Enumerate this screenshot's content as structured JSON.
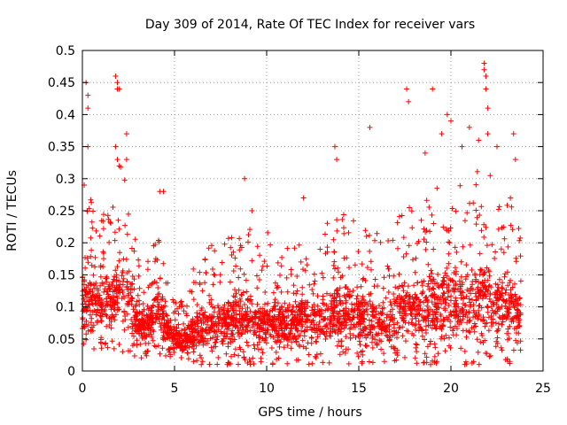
{
  "chart_data": {
    "type": "scatter",
    "title": "Day 309 of 2014, Rate Of TEC Index for receiver vars",
    "xlabel": "GPS time / hours",
    "ylabel": "ROTI / TECUs",
    "xlim": [
      0,
      25
    ],
    "ylim": [
      0,
      0.5
    ],
    "x_ticks": [
      0,
      5,
      10,
      15,
      20,
      25
    ],
    "y_ticks": [
      0,
      0.05,
      0.1,
      0.15,
      0.2,
      0.25,
      0.3,
      0.35,
      0.4,
      0.45,
      0.5
    ],
    "x_tick_labels": [
      "0",
      "5",
      "10",
      "15",
      "20",
      "25"
    ],
    "y_tick_labels": [
      "0",
      "0.05",
      "0.1",
      "0.15",
      "0.2",
      "0.25",
      "0.3",
      "0.35",
      "0.4",
      "0.45",
      "0.5"
    ],
    "grid": true,
    "marker": "+",
    "series_color": "#ff0000",
    "data_x_range": [
      0,
      23.8
    ],
    "envelope": {
      "x": [
        0,
        0.5,
        1.0,
        1.5,
        2.0,
        2.5,
        3.0,
        3.5,
        4.0,
        4.5,
        5.0,
        5.5,
        6.0,
        6.5,
        7.0,
        7.5,
        8.0,
        8.5,
        9.0,
        9.5,
        10.0,
        10.5,
        11.0,
        11.5,
        12.0,
        12.5,
        13.0,
        13.5,
        14.0,
        14.5,
        15.0,
        15.5,
        16.0,
        16.5,
        17.0,
        17.5,
        18.0,
        18.5,
        19.0,
        19.5,
        20.0,
        20.5,
        21.0,
        21.5,
        22.0,
        22.5,
        23.0,
        23.5,
        23.8
      ],
      "low": [
        0.03,
        0.03,
        0.03,
        0.03,
        0.03,
        0.03,
        0.02,
        0.02,
        0.03,
        0.02,
        0.02,
        0.01,
        0.01,
        0.01,
        0.01,
        0.01,
        0.01,
        0.01,
        0.01,
        0.01,
        0.01,
        0.01,
        0.01,
        0.01,
        0.01,
        0.01,
        0.01,
        0.01,
        0.01,
        0.01,
        0.01,
        0.01,
        0.01,
        0.01,
        0.01,
        0.01,
        0.01,
        0.01,
        0.01,
        0.01,
        0.01,
        0.01,
        0.01,
        0.01,
        0.01,
        0.01,
        0.01,
        0.01,
        0.02
      ],
      "high": [
        0.26,
        0.27,
        0.24,
        0.26,
        0.33,
        0.28,
        0.18,
        0.16,
        0.26,
        0.17,
        0.11,
        0.12,
        0.16,
        0.18,
        0.2,
        0.19,
        0.22,
        0.21,
        0.24,
        0.2,
        0.22,
        0.2,
        0.2,
        0.22,
        0.21,
        0.2,
        0.21,
        0.25,
        0.26,
        0.25,
        0.23,
        0.22,
        0.22,
        0.2,
        0.23,
        0.27,
        0.25,
        0.27,
        0.3,
        0.28,
        0.33,
        0.3,
        0.3,
        0.32,
        0.32,
        0.3,
        0.28,
        0.26,
        0.22
      ]
    },
    "outliers": [
      [
        0.2,
        0.45
      ],
      [
        0.3,
        0.43
      ],
      [
        0.3,
        0.41
      ],
      [
        0.3,
        0.35
      ],
      [
        0.1,
        0.29
      ],
      [
        1.8,
        0.46
      ],
      [
        1.9,
        0.45
      ],
      [
        1.9,
        0.44
      ],
      [
        2.0,
        0.44
      ],
      [
        1.8,
        0.35
      ],
      [
        1.9,
        0.33
      ],
      [
        2.0,
        0.32
      ],
      [
        2.4,
        0.37
      ],
      [
        2.4,
        0.33
      ],
      [
        4.2,
        0.28
      ],
      [
        4.4,
        0.28
      ],
      [
        8.8,
        0.3
      ],
      [
        9.2,
        0.25
      ],
      [
        12.0,
        0.27
      ],
      [
        13.7,
        0.35
      ],
      [
        13.8,
        0.33
      ],
      [
        15.6,
        0.38
      ],
      [
        17.6,
        0.44
      ],
      [
        17.7,
        0.42
      ],
      [
        18.6,
        0.34
      ],
      [
        19.0,
        0.44
      ],
      [
        19.5,
        0.37
      ],
      [
        19.8,
        0.4
      ],
      [
        20.0,
        0.39
      ],
      [
        20.6,
        0.35
      ],
      [
        21.0,
        0.38
      ],
      [
        21.5,
        0.36
      ],
      [
        21.8,
        0.48
      ],
      [
        21.8,
        0.47
      ],
      [
        21.9,
        0.46
      ],
      [
        21.9,
        0.44
      ],
      [
        22.0,
        0.41
      ],
      [
        22.0,
        0.37
      ],
      [
        22.5,
        0.35
      ],
      [
        23.4,
        0.37
      ],
      [
        23.5,
        0.33
      ]
    ]
  }
}
